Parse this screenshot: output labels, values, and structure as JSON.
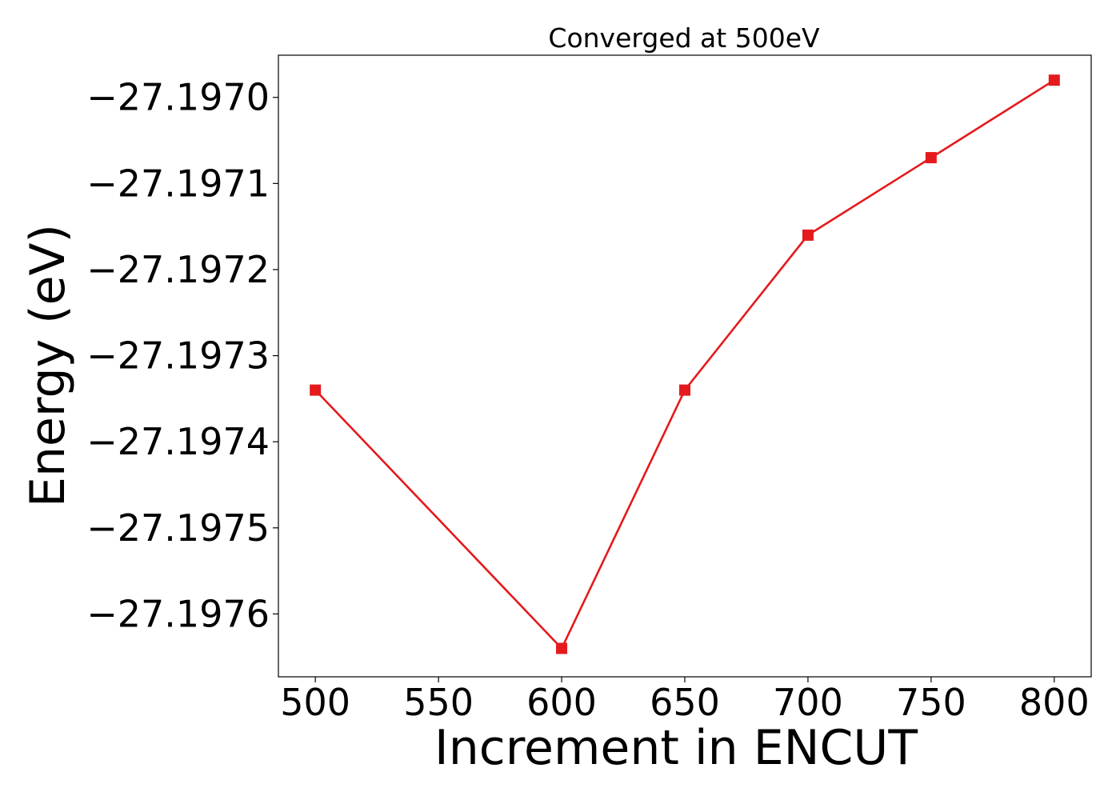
{
  "chart_data": {
    "type": "line",
    "title": "Converged at 500eV",
    "xlabel": "Increment in ENCUT",
    "ylabel": "Energy (eV)",
    "x": [
      500,
      600,
      650,
      700,
      750,
      800
    ],
    "series": [
      {
        "values": [
          -27.19734,
          -27.19764,
          -27.19734,
          -27.19716,
          -27.19707,
          -27.19698
        ],
        "color": "#e41a1c",
        "marker": "square"
      }
    ],
    "x_ticks": [
      500,
      550,
      600,
      650,
      700,
      750,
      800
    ],
    "x_tick_labels": [
      "500",
      "550",
      "600",
      "650",
      "700",
      "750",
      "800"
    ],
    "y_ticks": [
      -27.197,
      -27.1971,
      -27.1972,
      -27.1973,
      -27.1974,
      -27.1975,
      -27.1976
    ],
    "y_tick_labels": [
      "−27.1970",
      "−27.1971",
      "−27.1972",
      "−27.1973",
      "−27.1974",
      "−27.1975",
      "−27.1976"
    ],
    "xlim": [
      485,
      815
    ],
    "ylim": [
      -27.197673,
      -27.196951
    ],
    "grid": false,
    "legend": "none"
  }
}
